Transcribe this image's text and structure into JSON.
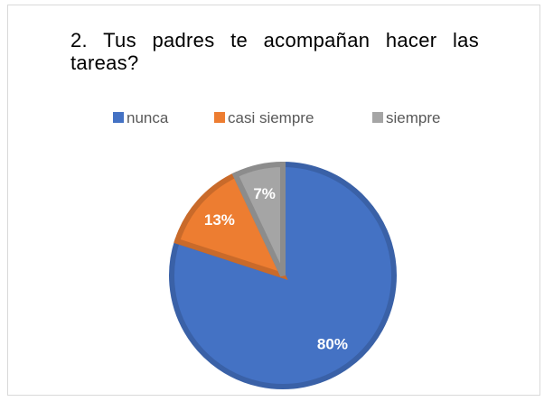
{
  "chart_data": {
    "type": "pie",
    "title": "2. Tus padres te acompañan hacer las tareas?",
    "categories": [
      "nunca",
      "casi siempre",
      "siempre"
    ],
    "values": [
      80,
      13,
      7
    ],
    "value_labels": [
      "80%",
      "13%",
      "7%"
    ],
    "colors": [
      "#4472c4",
      "#ed7d31",
      "#a5a5a5"
    ],
    "legend": "top"
  }
}
